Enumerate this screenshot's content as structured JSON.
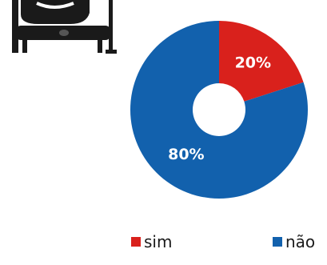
{
  "chart_data": {
    "type": "pie",
    "donut": true,
    "categories": [
      "sim",
      "não"
    ],
    "values": [
      20,
      80
    ],
    "data_labels": [
      "20%",
      "80%"
    ],
    "colors": [
      "#d9211c",
      "#1261ad"
    ],
    "legend_position": "bottom"
  },
  "legend": {
    "items": [
      {
        "label": "sim",
        "color": "#d9211c"
      },
      {
        "label": "não",
        "color": "#1261ad"
      }
    ]
  },
  "icon": {
    "name": "hospital-bed-icon"
  }
}
